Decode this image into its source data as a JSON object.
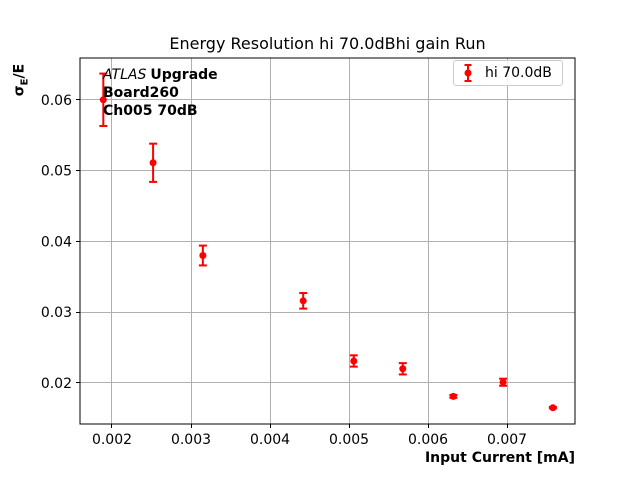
{
  "chart_data": {
    "type": "scatter",
    "title": "Energy Resolution hi 70.0dBhi gain Run",
    "xlabel": "Input Current [mA]",
    "ylabel": "σE/E",
    "ylabel_parts": {
      "sigma": "σ",
      "sub": "E",
      "rest": "/E"
    },
    "xlim": [
      0.001595,
      0.00786
    ],
    "ylim": [
      0.0142,
      0.0659
    ],
    "xticks": [
      0.002,
      0.003,
      0.004,
      0.005,
      0.006,
      0.007
    ],
    "xtick_labels": [
      "0.002",
      "0.003",
      "0.004",
      "0.005",
      "0.006",
      "0.007"
    ],
    "yticks": [
      0.02,
      0.03,
      0.04,
      0.05,
      0.06
    ],
    "ytick_labels": [
      "0.02",
      "0.03",
      "0.04",
      "0.05",
      "0.06"
    ],
    "grid": true,
    "grid_color": "#b0b0b0",
    "spine_color": "#000000",
    "legend": {
      "position": "upper right",
      "entries": [
        {
          "label": "hi 70.0dB",
          "color": "#ff0000",
          "marker": "errorbar-circle"
        }
      ]
    },
    "series": [
      {
        "name": "hi 70.0dB",
        "color": "#ff0000",
        "marker": "circle",
        "points": [
          {
            "x": 0.00189,
            "y": 0.06,
            "yerr": 0.0037
          },
          {
            "x": 0.00252,
            "y": 0.0511,
            "yerr": 0.0027
          },
          {
            "x": 0.00315,
            "y": 0.038,
            "yerr": 0.0014
          },
          {
            "x": 0.00442,
            "y": 0.0316,
            "yerr": 0.0011
          },
          {
            "x": 0.00506,
            "y": 0.0231,
            "yerr": 0.0008
          },
          {
            "x": 0.00568,
            "y": 0.022,
            "yerr": 0.0008
          },
          {
            "x": 0.00632,
            "y": 0.0181,
            "yerr": 0.0002
          },
          {
            "x": 0.00695,
            "y": 0.0201,
            "yerr": 0.0005
          },
          {
            "x": 0.00758,
            "y": 0.0165,
            "yerr": 0.0001
          }
        ]
      }
    ],
    "annotation": {
      "line1_italic": "ATLAS",
      "line1_bold": "Upgrade",
      "line2": "Board260",
      "line3": "Ch005 70dB"
    }
  }
}
